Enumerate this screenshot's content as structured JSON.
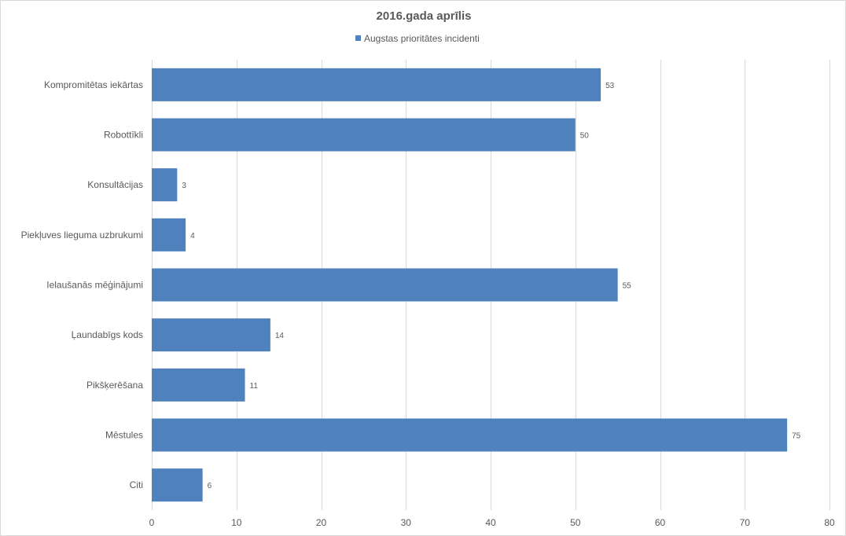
{
  "chart_data": {
    "type": "bar",
    "orientation": "horizontal",
    "title": "2016.gada aprīlis",
    "categories": [
      "Kompromitētas iekārtas",
      "Robottīkli",
      "Konsultācijas",
      "Piekļuves lieguma uzbrukumi",
      "Ielaušanās mēģinājumi",
      "Ļaundabīgs kods",
      "Pikšķerēšana",
      "Mēstules",
      "Citi"
    ],
    "series": [
      {
        "name": "Augstas prioritātes incidenti",
        "values": [
          53,
          50,
          3,
          4,
          55,
          14,
          11,
          75,
          6
        ],
        "color": "#4f81bd"
      }
    ],
    "xlim": [
      0,
      80
    ],
    "xticks": [
      0,
      10,
      20,
      30,
      40,
      50,
      60,
      70,
      80
    ],
    "grid": "vertical",
    "legend_position": "top",
    "data_labels": true
  }
}
